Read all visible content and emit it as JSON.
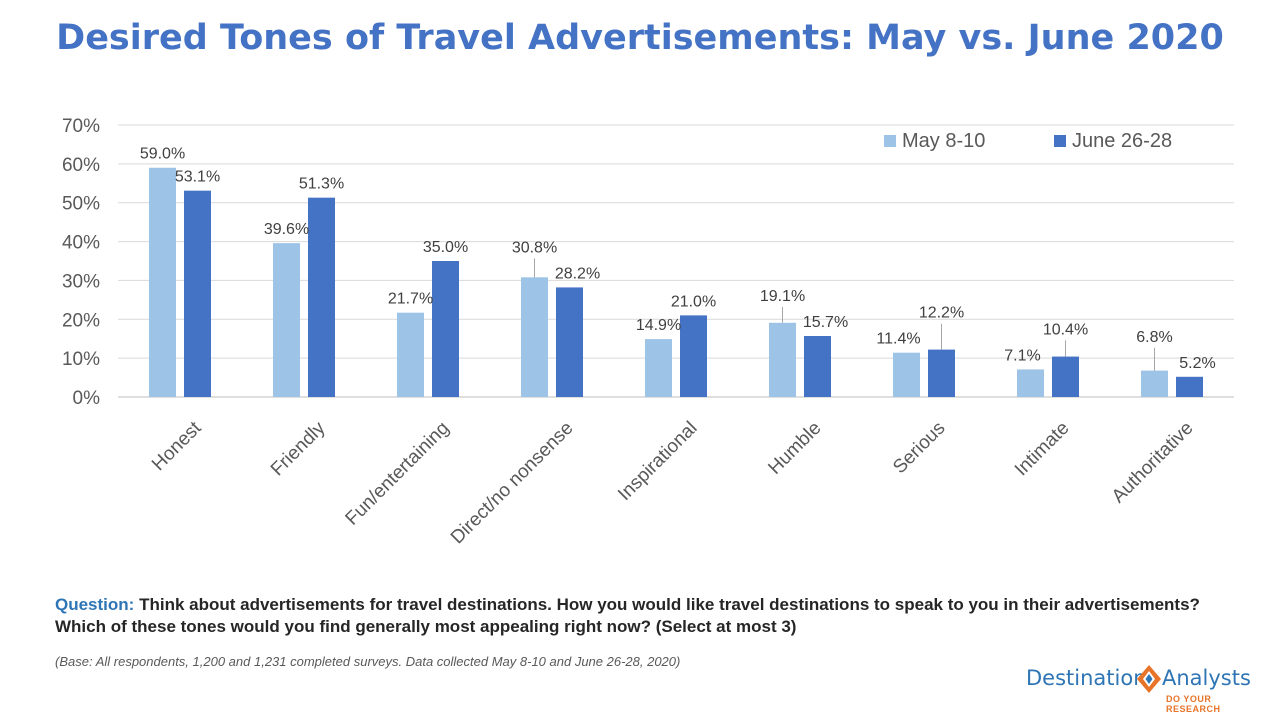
{
  "title": "Desired Tones of Travel Advertisements: May vs. June 2020",
  "question": {
    "label": "Question:",
    "text": "Think about advertisements for travel destinations.  How you would like travel destinations to speak to you in their advertisements?  Which of these tones would you find generally most appealing right now? (Select at most 3)"
  },
  "base_note": "(Base: All respondents, 1,200 and 1,231 completed surveys. Data collected May 8-10 and June 26-28, 2020)",
  "logo": {
    "name_part1": "Destination",
    "name_part2": "Analysts",
    "tagline": "DO YOUR RESEARCH",
    "colors": {
      "blue": "#2E75B6",
      "orange": "#E8742A"
    }
  },
  "chart_data": {
    "type": "bar",
    "categories": [
      "Honest",
      "Friendly",
      "Fun/entertaining",
      "Direct/no nonsense",
      "Inspirational",
      "Humble",
      "Serious",
      "Intimate",
      "Authoritative"
    ],
    "series": [
      {
        "name": "May 8-10",
        "color": "#9DC3E6",
        "values": [
          59.0,
          39.6,
          21.7,
          30.8,
          14.9,
          19.1,
          11.4,
          7.1,
          6.8
        ],
        "labels": [
          "59.0%",
          "39.6%",
          "21.7%",
          "30.8%",
          "14.9%",
          "19.1%",
          "11.4%",
          "7.1%",
          "6.8%"
        ]
      },
      {
        "name": "June 26-28",
        "color": "#4472C4",
        "values": [
          53.1,
          51.3,
          35.0,
          28.2,
          21.0,
          15.7,
          12.2,
          10.4,
          5.2
        ],
        "labels": [
          "53.1%",
          "51.3%",
          "35.0%",
          "28.2%",
          "21.0%",
          "15.7%",
          "12.2%",
          "10.4%",
          "5.2%"
        ]
      }
    ],
    "ylim": [
      0,
      70
    ],
    "yticks": [
      0,
      10,
      20,
      30,
      40,
      50,
      60,
      70
    ],
    "ytick_labels": [
      "0%",
      "10%",
      "20%",
      "30%",
      "40%",
      "50%",
      "60%",
      "70%"
    ],
    "grid": true,
    "legend": "top-right"
  }
}
